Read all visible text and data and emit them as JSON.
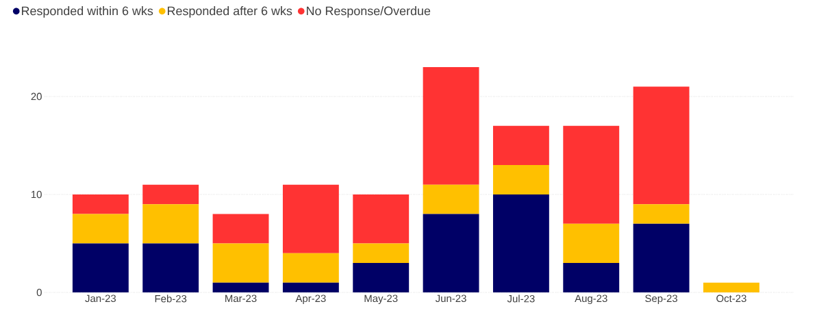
{
  "chart_data": {
    "type": "bar",
    "stacked": true,
    "categories": [
      "Jan-23",
      "Feb-23",
      "Mar-23",
      "Apr-23",
      "May-23",
      "Jun-23",
      "Jul-23",
      "Aug-23",
      "Sep-23",
      "Oct-23"
    ],
    "series": [
      {
        "name": "Responded within 6 wks",
        "color": "#000066",
        "values": [
          5,
          5,
          1,
          1,
          3,
          8,
          10,
          3,
          7,
          0
        ]
      },
      {
        "name": "Responded after 6 wks",
        "color": "#ffc000",
        "values": [
          3,
          4,
          4,
          3,
          2,
          3,
          3,
          4,
          2,
          1
        ]
      },
      {
        "name": "No Response/Overdue",
        "color": "#ff3333",
        "values": [
          2,
          2,
          3,
          7,
          5,
          12,
          4,
          10,
          12,
          0
        ]
      }
    ],
    "ylim": [
      0,
      23
    ],
    "yticks": [
      0,
      10,
      20
    ],
    "grid": "y",
    "legend": "top left"
  }
}
